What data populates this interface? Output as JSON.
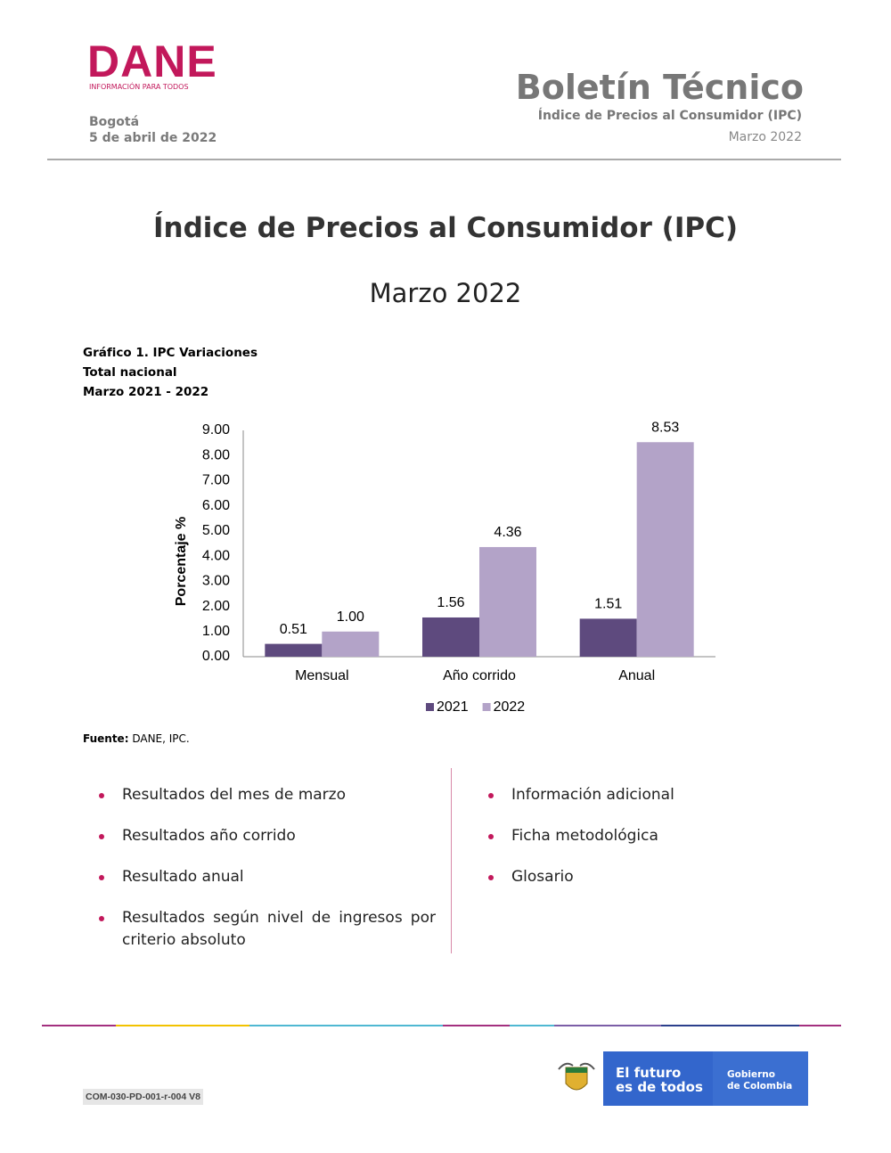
{
  "header": {
    "logo": "DANE",
    "logo_tagline": "INFORMACIÓN PARA TODOS",
    "city": "Bogotá",
    "date": "5 de abril de 2022",
    "title": "Boletín Técnico",
    "subtitle": "Índice de Precios al Consumidor (IPC)",
    "period": "Marzo 2022"
  },
  "main_title": "Índice de Precios al Consumidor (IPC)",
  "main_subtitle": "Marzo 2022",
  "chart_data": {
    "type": "bar",
    "title": "Gráfico 1. IPC Variaciones",
    "subtitle": [
      "Total nacional",
      "Marzo 2021 - 2022"
    ],
    "categories": [
      "Mensual",
      "Año corrido",
      "Anual"
    ],
    "series": [
      {
        "name": "2021",
        "color": "#5e4a7e",
        "values": [
          0.51,
          1.56,
          1.51
        ],
        "value_labels": [
          "0.51",
          "1.56",
          "1.51"
        ]
      },
      {
        "name": "2022",
        "color": "#b3a3c8",
        "values": [
          1,
          4.36,
          8.53
        ],
        "value_labels": [
          "1.00",
          "4.36",
          "8.53"
        ]
      }
    ],
    "ylabel": "Porcentaje %",
    "ylim": [
      0,
      9
    ],
    "yticks": [
      {
        "value": 0,
        "label": "0.00"
      },
      {
        "value": 1,
        "label": "1.00"
      },
      {
        "value": 2,
        "label": "2.00"
      },
      {
        "value": 3,
        "label": "3.00"
      },
      {
        "value": 4,
        "label": "4.00"
      },
      {
        "value": 5,
        "label": "5.00"
      },
      {
        "value": 6,
        "label": "6.00"
      },
      {
        "value": 7,
        "label": "7.00"
      },
      {
        "value": 8,
        "label": "8.00"
      },
      {
        "value": 9,
        "label": "9.00"
      }
    ],
    "grid": false,
    "legend": "bottom"
  },
  "source": {
    "label": "Fuente:",
    "text": "DANE, IPC."
  },
  "contents": {
    "left": [
      "Resultados del mes de marzo",
      "Resultados año corrido",
      "Resultado anual",
      "Resultados según nivel de ingresos por criterio absoluto"
    ],
    "right": [
      "Información adicional",
      "Ficha metodológica",
      "Glosario"
    ]
  },
  "footer": {
    "code": "COM-030-PD-001-r-004 V8",
    "brand": [
      "El futuro",
      "es de todos"
    ],
    "government": [
      "Gobierno",
      "de Colombia"
    ]
  }
}
